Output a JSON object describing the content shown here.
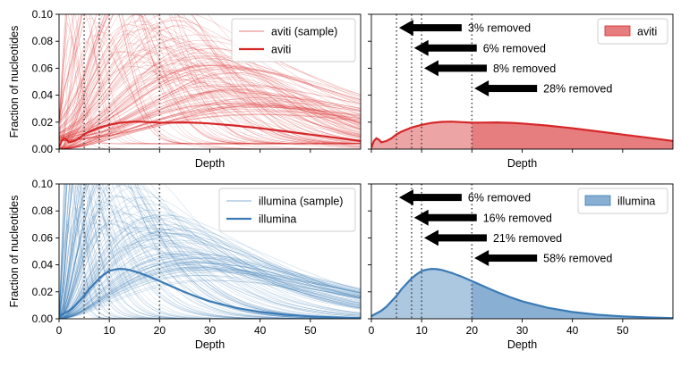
{
  "chart_data": [
    {
      "type": "line",
      "panel": "top-left",
      "xlabel": "Depth",
      "ylabel": "Fraction of nucleotides",
      "xlim": [
        0,
        60
      ],
      "ylim": [
        0,
        0.1
      ],
      "xticks": [
        0,
        10,
        20,
        30,
        40,
        50
      ],
      "xtick_labels_visible": false,
      "yticks": [
        0,
        0.02,
        0.04,
        0.06,
        0.08,
        0.1
      ],
      "ytick_labels": [
        "0.00",
        "0.02",
        "0.04",
        "0.06",
        "0.08",
        "0.10"
      ],
      "vlines": [
        5,
        8,
        10,
        20
      ],
      "legend": "top-right",
      "legend_entries": [
        "aviti (sample)",
        "aviti"
      ],
      "color": "#d62728",
      "sample_lines": {
        "count": 150,
        "opacity": 0.35
      },
      "mean_series": {
        "name": "aviti",
        "x": [
          0,
          0.5,
          1,
          1.5,
          2,
          3,
          4,
          5,
          6,
          8,
          10,
          12,
          14,
          16,
          18,
          20,
          22,
          25,
          28,
          30,
          35,
          40,
          45,
          50,
          55,
          60
        ],
        "y": [
          0.001,
          0.006,
          0.008,
          0.007,
          0.005,
          0.006,
          0.008,
          0.011,
          0.013,
          0.016,
          0.018,
          0.0195,
          0.0202,
          0.0204,
          0.02,
          0.0196,
          0.0197,
          0.0198,
          0.0195,
          0.019,
          0.0175,
          0.0155,
          0.0132,
          0.0108,
          0.0085,
          0.006
        ]
      }
    },
    {
      "type": "area",
      "panel": "top-right",
      "xlabel": "Depth",
      "xlim": [
        0,
        60
      ],
      "ylim": [
        0,
        0.1
      ],
      "xticks": [
        0,
        10,
        20,
        30,
        40,
        50
      ],
      "xtick_labels_visible": false,
      "ytick_labels_visible": false,
      "vlines": [
        5,
        8,
        10,
        20
      ],
      "shade_to": 20,
      "legend": "top-right",
      "legend_entries": [
        "aviti"
      ],
      "color": "#d62728",
      "annotations": [
        {
          "text": "3% removed",
          "arrow_tip_x": 5.5,
          "y": 0.09
        },
        {
          "text": "6% removed",
          "arrow_tip_x": 8.5,
          "y": 0.075
        },
        {
          "text": "8% removed",
          "arrow_tip_x": 10.5,
          "y": 0.06
        },
        {
          "text": "28% removed",
          "arrow_tip_x": 20.5,
          "y": 0.045
        }
      ],
      "series": {
        "name": "aviti",
        "x": [
          0,
          0.5,
          1,
          1.5,
          2,
          3,
          4,
          5,
          6,
          8,
          10,
          12,
          14,
          16,
          18,
          20,
          22,
          25,
          28,
          30,
          35,
          40,
          45,
          50,
          55,
          60
        ],
        "y": [
          0.001,
          0.006,
          0.008,
          0.007,
          0.005,
          0.006,
          0.008,
          0.011,
          0.013,
          0.016,
          0.018,
          0.0195,
          0.0202,
          0.0204,
          0.02,
          0.0196,
          0.0197,
          0.0198,
          0.0195,
          0.019,
          0.0175,
          0.0155,
          0.0132,
          0.0108,
          0.0085,
          0.006
        ]
      }
    },
    {
      "type": "line",
      "panel": "bottom-left",
      "xlabel": "Depth",
      "ylabel": "Fraction of nucleotides",
      "xlim": [
        0,
        60
      ],
      "ylim": [
        0,
        0.1
      ],
      "xticks": [
        0,
        10,
        20,
        30,
        40,
        50
      ],
      "xtick_labels": [
        "0",
        "10",
        "20",
        "30",
        "40",
        "50"
      ],
      "yticks": [
        0,
        0.02,
        0.04,
        0.06,
        0.08,
        0.1
      ],
      "ytick_labels": [
        "0.00",
        "0.02",
        "0.04",
        "0.06",
        "0.08",
        "0.10"
      ],
      "vlines": [
        5,
        8,
        10,
        20
      ],
      "legend": "top-right",
      "legend_entries": [
        "illumina (sample)",
        "illumina"
      ],
      "color": "#3a7ab5",
      "sample_lines": {
        "count": 150,
        "opacity": 0.35
      },
      "mean_series": {
        "name": "illumina",
        "x": [
          0,
          0.5,
          1,
          2,
          3,
          4,
          5,
          6,
          7,
          8,
          9,
          10,
          11,
          12,
          13,
          14,
          16,
          18,
          20,
          22,
          25,
          28,
          30,
          35,
          40,
          45,
          50,
          55,
          60
        ],
        "y": [
          0.002,
          0.003,
          0.004,
          0.006,
          0.009,
          0.013,
          0.017,
          0.022,
          0.026,
          0.03,
          0.033,
          0.0355,
          0.0365,
          0.037,
          0.0368,
          0.0362,
          0.034,
          0.0312,
          0.028,
          0.0247,
          0.0198,
          0.0155,
          0.013,
          0.0082,
          0.005,
          0.003,
          0.0018,
          0.001,
          0.0005
        ]
      }
    },
    {
      "type": "area",
      "panel": "bottom-right",
      "xlabel": "Depth",
      "xlim": [
        0,
        60
      ],
      "ylim": [
        0,
        0.1
      ],
      "xticks": [
        0,
        10,
        20,
        30,
        40,
        50
      ],
      "xtick_labels": [
        "0",
        "10",
        "20",
        "30",
        "40",
        "50"
      ],
      "ytick_labels_visible": false,
      "vlines": [
        5,
        8,
        10,
        20
      ],
      "shade_to": 20,
      "legend": "top-right",
      "legend_entries": [
        "illumina"
      ],
      "color": "#3a7ab5",
      "annotations": [
        {
          "text": "6% removed",
          "arrow_tip_x": 5.5,
          "y": 0.09
        },
        {
          "text": "16% removed",
          "arrow_tip_x": 8.5,
          "y": 0.075
        },
        {
          "text": "21% removed",
          "arrow_tip_x": 10.5,
          "y": 0.06
        },
        {
          "text": "58% removed",
          "arrow_tip_x": 20.5,
          "y": 0.045
        }
      ],
      "series": {
        "name": "illumina",
        "x": [
          0,
          0.5,
          1,
          2,
          3,
          4,
          5,
          6,
          7,
          8,
          9,
          10,
          11,
          12,
          13,
          14,
          16,
          18,
          20,
          22,
          25,
          28,
          30,
          35,
          40,
          45,
          50,
          55,
          60
        ],
        "y": [
          0.002,
          0.003,
          0.004,
          0.006,
          0.009,
          0.013,
          0.017,
          0.022,
          0.026,
          0.03,
          0.033,
          0.0355,
          0.0365,
          0.037,
          0.0368,
          0.0362,
          0.034,
          0.0312,
          0.028,
          0.0247,
          0.0198,
          0.0155,
          0.013,
          0.0082,
          0.005,
          0.003,
          0.0018,
          0.001,
          0.0005
        ]
      }
    }
  ]
}
